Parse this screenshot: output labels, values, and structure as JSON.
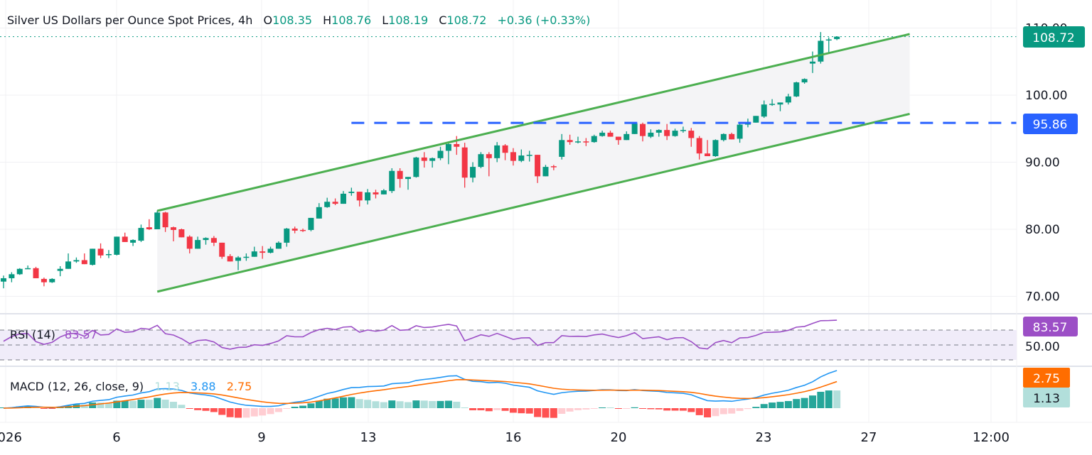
{
  "header": {
    "title": "Silver US Dollars per Ounce Spot Prices, 4h",
    "o_label": "O",
    "o_value": "108.35",
    "h_label": "H",
    "h_value": "108.76",
    "l_label": "L",
    "l_value": "108.19",
    "c_label": "C",
    "c_value": "108.72",
    "change": "+0.36 (+0.33%)"
  },
  "price_axis": {
    "ticks": [
      "110.00",
      "100.00",
      "90.00",
      "80.00",
      "70.00"
    ],
    "last_price_badge": "108.72",
    "level_badge": "95.86"
  },
  "rsi": {
    "label": "RSI (14)",
    "value": "83.57",
    "axis_tick": "50.00",
    "badge": "83.57",
    "bands": [
      30,
      50,
      70
    ]
  },
  "macd": {
    "label": "MACD (12, 26, close, 9)",
    "histogram_value": "1.13",
    "macd_value": "3.88",
    "signal_value": "2.75",
    "signal_badge": "2.75",
    "histogram_badge": "1.13"
  },
  "time_axis": {
    "labels": [
      "2026",
      "6",
      "9",
      "13",
      "16",
      "20",
      "23",
      "27",
      "12:00"
    ]
  },
  "colors": {
    "up": "#089981",
    "down": "#f23645",
    "channel": "#4caf50",
    "level_line": "#2962ff",
    "rsi": "#9c4fc6",
    "macd": "#2196f3",
    "signal": "#ff6d00",
    "hist_up_strong": "#26a69a",
    "hist_up_weak": "#b2dfdb",
    "hist_down_strong": "#ff5252",
    "hist_down_weak": "#ffcdd2"
  },
  "chart_data": {
    "type": "candlestick",
    "timeframe": "4h",
    "ohlc": [
      [
        72.2,
        73.1,
        71.2,
        72.7
      ],
      [
        72.7,
        73.6,
        72.1,
        73.3
      ],
      [
        73.3,
        74.2,
        73.2,
        74.1
      ],
      [
        74.1,
        74.6,
        74.1,
        74.2
      ],
      [
        74.2,
        74.4,
        72.7,
        72.7
      ],
      [
        72.6,
        72.8,
        71.5,
        72.1
      ],
      [
        72.1,
        72.7,
        72.0,
        72.6
      ],
      [
        73.8,
        74.5,
        73.0,
        74.1
      ],
      [
        74.1,
        76.4,
        74.1,
        75.2
      ],
      [
        75.2,
        75.8,
        75.0,
        75.4
      ],
      [
        75.4,
        76.4,
        74.8,
        74.8
      ],
      [
        74.7,
        77.1,
        74.6,
        77.1
      ],
      [
        77.1,
        77.9,
        75.7,
        76.1
      ],
      [
        76.2,
        76.9,
        75.7,
        76.3
      ],
      [
        76.2,
        78.9,
        76.1,
        78.9
      ],
      [
        78.9,
        79.5,
        78.1,
        78.1
      ],
      [
        78.0,
        78.5,
        77.5,
        78.4
      ],
      [
        78.3,
        80.7,
        78.1,
        80.2
      ],
      [
        80.3,
        81.5,
        79.9,
        80.0
      ],
      [
        80.0,
        82.8,
        80.0,
        82.5
      ],
      [
        82.5,
        82.6,
        79.6,
        80.3
      ],
      [
        80.3,
        80.4,
        78.2,
        79.9
      ],
      [
        80.0,
        80.1,
        78.8,
        78.8
      ],
      [
        78.9,
        79.1,
        76.4,
        77.1
      ],
      [
        77.1,
        78.9,
        77.1,
        78.4
      ],
      [
        78.4,
        78.8,
        77.7,
        78.7
      ],
      [
        78.7,
        79.0,
        77.5,
        78.0
      ],
      [
        78.0,
        78.0,
        75.6,
        75.9
      ],
      [
        76.0,
        76.3,
        75.2,
        75.2
      ],
      [
        75.3,
        76.0,
        73.9,
        75.8
      ],
      [
        75.8,
        76.4,
        75.3,
        75.9
      ],
      [
        75.9,
        77.4,
        75.9,
        76.7
      ],
      [
        76.7,
        77.5,
        75.6,
        76.5
      ],
      [
        76.5,
        77.4,
        76.4,
        77.1
      ],
      [
        77.1,
        78.2,
        77.1,
        78.0
      ],
      [
        78.0,
        80.2,
        77.4,
        80.1
      ],
      [
        80.1,
        80.4,
        79.4,
        79.8
      ],
      [
        79.9,
        80.1,
        79.6,
        79.8
      ],
      [
        79.9,
        81.7,
        79.7,
        81.7
      ],
      [
        81.6,
        83.9,
        81.6,
        83.3
      ],
      [
        83.3,
        84.7,
        83.2,
        84.1
      ],
      [
        84.1,
        84.6,
        83.6,
        83.8
      ],
      [
        83.8,
        85.7,
        83.8,
        85.3
      ],
      [
        85.4,
        86.2,
        85.0,
        85.6
      ],
      [
        85.6,
        85.6,
        83.4,
        84.3
      ],
      [
        84.3,
        86.0,
        83.7,
        85.5
      ],
      [
        85.5,
        85.9,
        84.6,
        85.2
      ],
      [
        85.2,
        86.0,
        85.2,
        85.8
      ],
      [
        85.7,
        89.1,
        85.4,
        88.7
      ],
      [
        88.7,
        89.1,
        86.2,
        87.5
      ],
      [
        87.5,
        87.8,
        85.9,
        87.8
      ],
      [
        87.8,
        90.8,
        87.7,
        90.7
      ],
      [
        90.7,
        91.5,
        89.2,
        90.2
      ],
      [
        90.2,
        90.7,
        89.2,
        90.6
      ],
      [
        90.6,
        92.3,
        90.3,
        91.7
      ],
      [
        91.7,
        93.0,
        89.7,
        92.7
      ],
      [
        92.7,
        93.9,
        91.1,
        92.3
      ],
      [
        92.2,
        92.9,
        86.2,
        87.7
      ],
      [
        87.7,
        90.0,
        87.0,
        89.3
      ],
      [
        89.3,
        91.5,
        89.1,
        91.2
      ],
      [
        91.2,
        91.5,
        87.9,
        90.6
      ],
      [
        90.6,
        93.0,
        90.0,
        92.5
      ],
      [
        92.5,
        92.7,
        90.3,
        91.4
      ],
      [
        91.5,
        92.1,
        89.5,
        90.2
      ],
      [
        90.2,
        91.9,
        90.0,
        91.0
      ],
      [
        91.0,
        91.7,
        90.1,
        91.1
      ],
      [
        91.1,
        91.1,
        86.9,
        87.9
      ],
      [
        87.9,
        89.6,
        87.9,
        89.3
      ],
      [
        89.4,
        89.6,
        88.8,
        89.3
      ],
      [
        90.8,
        94.2,
        90.4,
        93.3
      ],
      [
        93.3,
        94.1,
        92.6,
        93.0
      ],
      [
        93.0,
        93.8,
        92.8,
        93.1
      ],
      [
        93.1,
        93.6,
        92.4,
        93.0
      ],
      [
        93.0,
        94.1,
        92.9,
        93.9
      ],
      [
        93.9,
        94.7,
        93.8,
        94.4
      ],
      [
        94.4,
        94.7,
        93.8,
        93.8
      ],
      [
        93.8,
        93.8,
        92.6,
        93.3
      ],
      [
        93.3,
        94.6,
        93.3,
        94.2
      ],
      [
        94.2,
        95.9,
        94.2,
        95.8
      ],
      [
        95.7,
        95.9,
        93.1,
        93.9
      ],
      [
        93.8,
        94.9,
        93.6,
        94.4
      ],
      [
        94.4,
        94.9,
        93.8,
        94.8
      ],
      [
        94.8,
        95.7,
        93.3,
        93.9
      ],
      [
        93.9,
        95.0,
        93.8,
        94.7
      ],
      [
        94.7,
        95.3,
        94.4,
        94.8
      ],
      [
        94.7,
        95.1,
        92.3,
        93.6
      ],
      [
        93.6,
        93.9,
        90.4,
        91.3
      ],
      [
        91.3,
        93.3,
        90.9,
        90.9
      ],
      [
        90.9,
        93.4,
        90.8,
        93.3
      ],
      [
        93.3,
        94.3,
        93.1,
        94.2
      ],
      [
        94.2,
        94.4,
        93.4,
        93.4
      ],
      [
        93.5,
        95.9,
        92.9,
        95.6
      ],
      [
        95.6,
        96.5,
        95.2,
        95.8
      ],
      [
        95.9,
        96.9,
        95.9,
        96.9
      ],
      [
        96.8,
        99.2,
        96.6,
        98.6
      ],
      [
        98.6,
        99.4,
        98.4,
        98.7
      ],
      [
        98.6,
        98.9,
        97.6,
        98.9
      ],
      [
        98.9,
        100.2,
        98.6,
        99.8
      ],
      [
        99.8,
        102.0,
        99.7,
        101.9
      ],
      [
        101.9,
        102.5,
        101.7,
        102.4
      ],
      [
        104.7,
        106.5,
        103.3,
        105.0
      ],
      [
        105.0,
        109.4,
        104.7,
        108.1
      ],
      [
        108.2,
        108.6,
        106.2,
        108.3
      ],
      [
        108.35,
        108.76,
        108.19,
        108.72
      ]
    ],
    "y_range": [
      66.5,
      112
    ],
    "price_ticks": [
      70,
      80,
      90,
      100,
      110
    ],
    "horizontal_level": 95.86,
    "channel": {
      "upper": {
        "from": [
          19,
          82.75
        ],
        "to": [
          112,
          109.1
        ]
      },
      "lower": {
        "from": [
          19,
          70.7
        ],
        "to": [
          112,
          97.2
        ]
      },
      "level_start_bar": 43
    },
    "rsi_period": 14,
    "macd_params": [
      12,
      26,
      9
    ],
    "grid": true
  }
}
